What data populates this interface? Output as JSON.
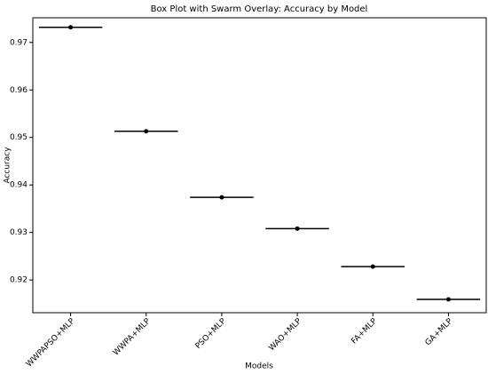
{
  "chart_data": {
    "type": "box",
    "title": "Box Plot with Swarm Overlay: Accuracy by Model",
    "x_label": "Models",
    "y_label": "Accuracy",
    "categories": [
      "WWPAPSO+MLP",
      "WWPA+MLP",
      "PSO+MLP",
      "WAO+MLP",
      "FA+MLP",
      "GA+MLP"
    ],
    "values": [
      0.9732,
      0.9513,
      0.9374,
      0.9308,
      0.9228,
      0.9159
    ],
    "color": "#000000",
    "ylim": [
      0.9131,
      0.9752
    ],
    "yticks": [
      0.92,
      0.93,
      0.94,
      0.95,
      0.96,
      0.97
    ]
  }
}
